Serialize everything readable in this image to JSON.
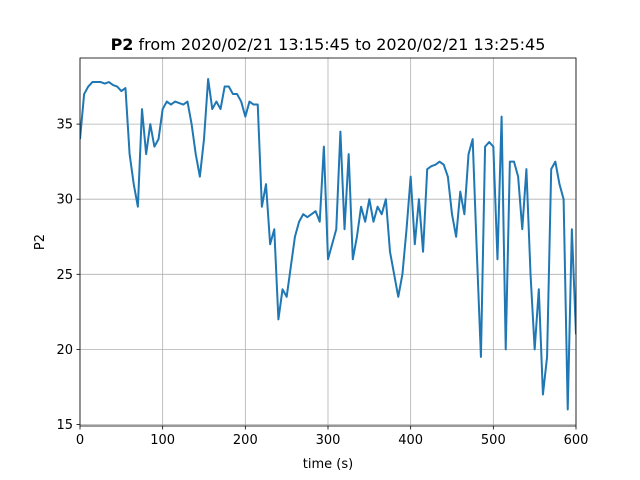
{
  "chart_data": {
    "type": "line",
    "title_parts": [
      "P2",
      "from 2020/02/21 13:15:45 to 2020/02/21 13:25:45"
    ],
    "x_label": "time (s)",
    "y_label": "P2",
    "x": [
      0,
      5,
      10,
      15,
      20,
      25,
      30,
      35,
      40,
      45,
      50,
      55,
      60,
      65,
      70,
      75,
      80,
      85,
      90,
      95,
      100,
      105,
      110,
      115,
      120,
      125,
      130,
      135,
      140,
      145,
      150,
      155,
      160,
      165,
      170,
      175,
      180,
      185,
      190,
      195,
      200,
      205,
      210,
      215,
      220,
      225,
      230,
      235,
      240,
      245,
      250,
      255,
      260,
      265,
      270,
      275,
      280,
      285,
      290,
      295,
      300,
      305,
      310,
      315,
      320,
      325,
      330,
      335,
      340,
      345,
      350,
      355,
      360,
      365,
      370,
      375,
      380,
      385,
      390,
      395,
      400,
      405,
      410,
      415,
      420,
      425,
      430,
      435,
      440,
      445,
      450,
      455,
      460,
      465,
      470,
      475,
      480,
      485,
      490,
      495,
      500,
      505,
      510,
      515,
      520,
      525,
      530,
      535,
      540,
      545,
      550,
      555,
      560,
      565,
      570,
      575,
      580,
      585,
      590,
      595,
      600
    ],
    "series": [
      {
        "name": "P2",
        "color": "#1f77b4",
        "values": [
          34,
          37,
          37.5,
          37.8,
          37.8,
          37.8,
          37.7,
          37.8,
          37.6,
          37.5,
          37.2,
          37.4,
          33,
          31,
          29.5,
          36,
          33,
          35,
          33.5,
          34,
          36,
          36.5,
          36.3,
          36.5,
          36.4,
          36.3,
          36.5,
          35,
          33,
          31.5,
          34,
          38,
          36,
          36.5,
          36,
          37.5,
          37.5,
          37,
          37,
          36.5,
          35.5,
          36.5,
          36.3,
          36.3,
          29.5,
          31,
          27,
          28,
          22,
          24,
          23.5,
          25.5,
          27.5,
          28.5,
          29,
          28.8,
          29,
          29.2,
          28.5,
          33.5,
          26,
          27,
          28,
          34.5,
          28,
          33,
          26,
          27.5,
          29.5,
          28.5,
          30,
          28.5,
          29.5,
          29,
          30,
          26.5,
          25,
          23.5,
          25,
          28,
          31.5,
          27,
          30,
          26.5,
          32,
          32.2,
          32.3,
          32.5,
          32.3,
          31.5,
          29,
          27.5,
          30.5,
          29,
          33,
          34,
          26.5,
          19.5,
          33.5,
          33.8,
          33.5,
          26,
          35.5,
          20,
          32.5,
          32.5,
          31.5,
          28,
          32,
          25,
          20,
          24,
          17,
          19.5,
          32,
          32.5,
          31,
          30,
          16,
          28,
          21
        ]
      }
    ],
    "xlim": [
      0,
      600
    ],
    "ylim": [
      14.9,
      39.4
    ],
    "xticks": [
      0,
      100,
      200,
      300,
      400,
      500,
      600
    ],
    "yticks": [
      15,
      20,
      25,
      30,
      35
    ],
    "grid": true
  }
}
